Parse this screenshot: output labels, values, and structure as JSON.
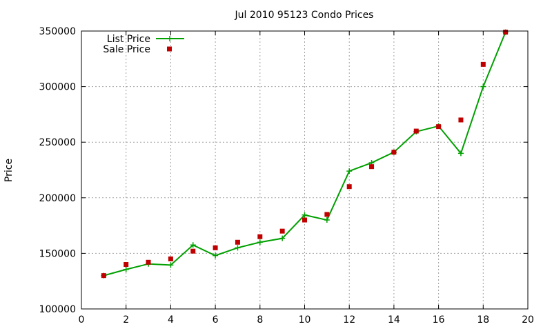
{
  "chart_data": {
    "type": "line",
    "title": "Jul 2010 95123 Condo Prices",
    "ylabel": "Price",
    "xlabel": "",
    "xlim": [
      0,
      20
    ],
    "ylim": [
      100000,
      350000
    ],
    "x_ticks": [
      0,
      2,
      4,
      6,
      8,
      10,
      12,
      14,
      16,
      18,
      20
    ],
    "y_ticks": [
      100000,
      150000,
      200000,
      250000,
      300000,
      350000
    ],
    "grid": true,
    "legend_position": "top-left",
    "series": [
      {
        "name": "List Price",
        "style": "line-with-plus-markers",
        "color": "#00a000",
        "x": [
          1,
          2,
          3,
          4,
          5,
          6,
          7,
          8,
          9,
          10,
          11,
          12,
          13,
          14,
          15,
          16,
          17,
          18,
          19
        ],
        "values": [
          130000,
          135500,
          140500,
          139500,
          157500,
          148000,
          155000,
          160000,
          163500,
          184500,
          180000,
          224000,
          231500,
          241000,
          259500,
          264500,
          240000,
          300000,
          349000
        ]
      },
      {
        "name": "Sale Price",
        "style": "square-markers",
        "color": "#c00000",
        "x": [
          1,
          2,
          3,
          4,
          5,
          6,
          7,
          8,
          9,
          10,
          11,
          12,
          13,
          14,
          15,
          16,
          17,
          18,
          19
        ],
        "values": [
          130000,
          140000,
          142000,
          145000,
          152000,
          155000,
          160000,
          165000,
          170000,
          180000,
          185000,
          210000,
          228000,
          241000,
          260000,
          264000,
          270000,
          320000,
          349000
        ]
      }
    ]
  }
}
